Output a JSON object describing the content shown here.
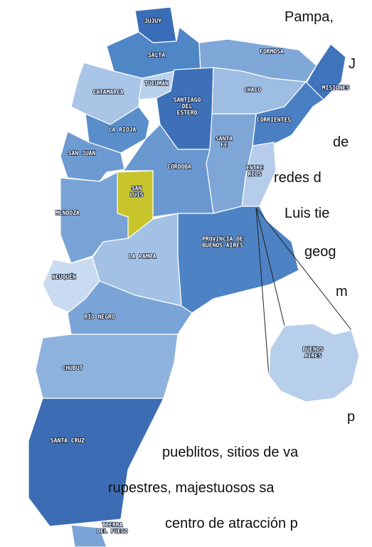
{
  "map": {
    "regions": [
      {
        "label_lines": [
          "JUJUY"
        ],
        "color": "#3a6db8"
      },
      {
        "label_lines": [
          "SALTA"
        ],
        "color": "#4f86c6"
      },
      {
        "label_lines": [
          "FORMOSA"
        ],
        "color": "#7fa8d8"
      },
      {
        "label_lines": [
          "MISIONES"
        ],
        "color": "#3f73bc"
      },
      {
        "label_lines": [
          "CATAMARCA"
        ],
        "color": "#a9c6e6"
      },
      {
        "label_lines": [
          "TUCUMÁN"
        ],
        "color": "#b9d1ec"
      },
      {
        "label_lines": [
          "SANTIAGO",
          "DEL",
          "ESTERO"
        ],
        "color": "#3e70b8"
      },
      {
        "label_lines": [
          "CHACO"
        ],
        "color": "#9dbde3"
      },
      {
        "label_lines": [
          "CORRIENTES"
        ],
        "color": "#4a80c3"
      },
      {
        "label_lines": [
          "SANTA",
          "FE"
        ],
        "color": "#7ea7d7"
      },
      {
        "label_lines": [
          "ENTRE",
          "RIOS"
        ],
        "color": "#b5cdea"
      },
      {
        "label_lines": [
          "LA RIOJA"
        ],
        "color": "#5a8ecb"
      },
      {
        "label_lines": [
          "SAN JUAN"
        ],
        "color": "#6d9ad1"
      },
      {
        "label_lines": [
          "CÓRDOBA"
        ],
        "color": "#6997d0"
      },
      {
        "label_lines": [
          "SAN",
          "LUIS"
        ],
        "color": "#c8c52c"
      },
      {
        "label_lines": [
          "MENDOZA"
        ],
        "color": "#79a3d6"
      },
      {
        "label_lines": [
          "PROVINCIA DE",
          "BUENOS AIRES"
        ],
        "color": "#4d83c4"
      },
      {
        "label_lines": [
          "LA PAMPA"
        ],
        "color": "#a3c1e5"
      },
      {
        "label_lines": [
          "NEUQUÉN"
        ],
        "color": "#c9dbf0"
      },
      {
        "label_lines": [
          "RÍO NEGRO"
        ],
        "color": "#7aa4d7"
      },
      {
        "label_lines": [
          "CHUBUT"
        ],
        "color": "#8db2dd"
      },
      {
        "label_lines": [
          "SANTA CRUZ"
        ],
        "color": "#3c6db4"
      },
      {
        "label_lines": [
          "TIERRA",
          "DEL FUEGO"
        ],
        "color": "#7aa4d7"
      }
    ],
    "inset": {
      "label_lines": [
        "BUENOS",
        "AIRES"
      ],
      "color": "#b7cfea"
    }
  },
  "text": {
    "lines": [
      "Pampa,",
      "J",
      "de",
      "redes d",
      "Luis tie",
      "geog",
      "m",
      "p",
      "pueblitos, sitios de va",
      "rupestres, majestuosos sa",
      "centro de atracción p"
    ]
  }
}
